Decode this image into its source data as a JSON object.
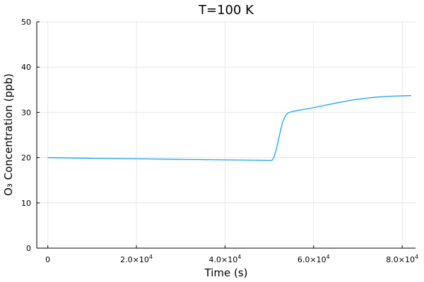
{
  "chart_data": {
    "type": "line",
    "title": "T=100 K",
    "xlabel": "Time (s)",
    "ylabel": "O₃ Concentration (ppb)",
    "xlim": [
      -2500,
      83000
    ],
    "ylim": [
      0,
      50
    ],
    "grid": true,
    "xticks": [
      {
        "value": 0,
        "mantissa": "0",
        "exponent": ""
      },
      {
        "value": 20000,
        "mantissa": "2.0×10",
        "exponent": "4"
      },
      {
        "value": 40000,
        "mantissa": "4.0×10",
        "exponent": "4"
      },
      {
        "value": 60000,
        "mantissa": "6.0×10",
        "exponent": "4"
      },
      {
        "value": 80000,
        "mantissa": "8.0×10",
        "exponent": "4"
      }
    ],
    "yticks": [
      {
        "value": 0,
        "label": "0"
      },
      {
        "value": 10,
        "label": "10"
      },
      {
        "value": 20,
        "label": "20"
      },
      {
        "value": 30,
        "label": "30"
      },
      {
        "value": 40,
        "label": "40"
      },
      {
        "value": 50,
        "label": "50"
      }
    ],
    "series": [
      {
        "color": "#009AFA",
        "x": [
          0,
          10000,
          20000,
          30000,
          40000,
          50000,
          50600,
          51000,
          51500,
          52000,
          52500,
          53000,
          53500,
          54000,
          54500,
          55000,
          56000,
          58000,
          60000,
          62000,
          65000,
          68000,
          70000,
          72000,
          74000,
          76000,
          78000,
          80000,
          82000
        ],
        "y": [
          20.0,
          19.85,
          19.75,
          19.6,
          19.5,
          19.4,
          19.4,
          20.0,
          21.5,
          23.7,
          25.9,
          27.8,
          29.0,
          29.7,
          30.0,
          30.15,
          30.35,
          30.7,
          31.05,
          31.45,
          32.05,
          32.6,
          32.9,
          33.15,
          33.35,
          33.5,
          33.6,
          33.65,
          33.7
        ]
      }
    ]
  }
}
